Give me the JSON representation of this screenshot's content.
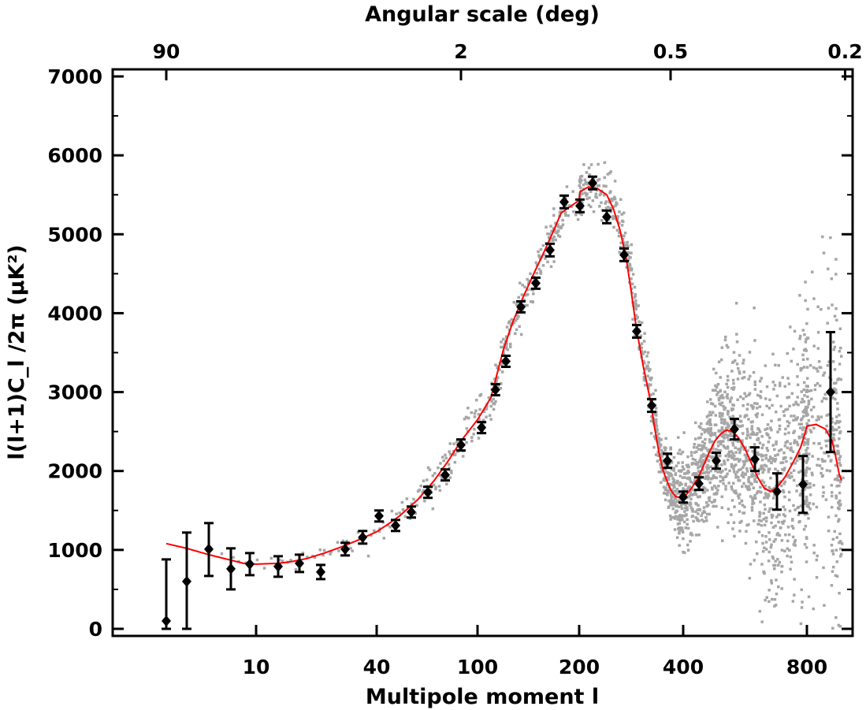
{
  "chart_data": {
    "type": "scatter",
    "title": "",
    "xlabel": "Multipole moment l",
    "ylabel": "l(l+1)C_l /2π (μK²)",
    "top_axis_label": "Angular scale (deg)",
    "x_scale": "nonlinear (log-like at low l, linear at high l)",
    "x_ticks": [
      {
        "l": 10,
        "label": "10"
      },
      {
        "l": 40,
        "label": "40"
      },
      {
        "l": 100,
        "label": "100"
      },
      {
        "l": 200,
        "label": "200"
      },
      {
        "l": 400,
        "label": "400"
      },
      {
        "l": 800,
        "label": "800"
      }
    ],
    "top_ticks": [
      {
        "l": 2,
        "label": "90"
      },
      {
        "l": 90,
        "label": "2"
      },
      {
        "l": 360,
        "label": "0.5"
      },
      {
        "l": 900,
        "label": "0.2"
      }
    ],
    "y_ticks": [
      0,
      1000,
      2000,
      3000,
      4000,
      5000,
      6000,
      7000
    ],
    "ylim": [
      0,
      7000
    ],
    "grid": false,
    "colors": {
      "binned": "#000000",
      "raw": "#a6a6a6",
      "model": "#ff0000"
    },
    "series": [
      {
        "kind": "binned-with-error-bars",
        "points": [
          {
            "l": 2,
            "y": 100,
            "err_lo": 100,
            "err_hi": 780
          },
          {
            "l": 3,
            "y": 600,
            "err_lo": 600,
            "err_hi": 620
          },
          {
            "l": 4,
            "y": 1010,
            "err_lo": 340,
            "err_hi": 330
          },
          {
            "l": 6,
            "y": 760,
            "err_lo": 260,
            "err_hi": 260
          },
          {
            "l": 9,
            "y": 820,
            "err_lo": 140,
            "err_hi": 140
          },
          {
            "l": 13,
            "y": 790,
            "err_lo": 130,
            "err_hi": 130
          },
          {
            "l": 18,
            "y": 830,
            "err_lo": 110,
            "err_hi": 110
          },
          {
            "l": 24,
            "y": 720,
            "err_lo": 90,
            "err_hi": 90
          },
          {
            "l": 31,
            "y": 1010,
            "err_lo": 80,
            "err_hi": 80
          },
          {
            "l": 36,
            "y": 1160,
            "err_lo": 80,
            "err_hi": 80
          },
          {
            "l": 41,
            "y": 1430,
            "err_lo": 70,
            "err_hi": 70
          },
          {
            "l": 48,
            "y": 1310,
            "err_lo": 70,
            "err_hi": 70
          },
          {
            "l": 56,
            "y": 1480,
            "err_lo": 70,
            "err_hi": 70
          },
          {
            "l": 66,
            "y": 1730,
            "err_lo": 70,
            "err_hi": 70
          },
          {
            "l": 78,
            "y": 1950,
            "err_lo": 70,
            "err_hi": 70
          },
          {
            "l": 90,
            "y": 2330,
            "err_lo": 70,
            "err_hi": 70
          },
          {
            "l": 103,
            "y": 2550,
            "err_lo": 70,
            "err_hi": 70
          },
          {
            "l": 117,
            "y": 3030,
            "err_lo": 70,
            "err_hi": 70
          },
          {
            "l": 133,
            "y": 3390,
            "err_lo": 70,
            "err_hi": 70
          },
          {
            "l": 148,
            "y": 4080,
            "err_lo": 70,
            "err_hi": 70
          },
          {
            "l": 162,
            "y": 4380,
            "err_lo": 70,
            "err_hi": 70
          },
          {
            "l": 175,
            "y": 4800,
            "err_lo": 80,
            "err_hi": 80
          },
          {
            "l": 194,
            "y": 5410,
            "err_lo": 80,
            "err_hi": 80
          },
          {
            "l": 210,
            "y": 5360,
            "err_lo": 80,
            "err_hi": 80
          },
          {
            "l": 225,
            "y": 5650,
            "err_lo": 80,
            "err_hi": 80
          },
          {
            "l": 240,
            "y": 5220,
            "err_lo": 80,
            "err_hi": 80
          },
          {
            "l": 266,
            "y": 4740,
            "err_lo": 80,
            "err_hi": 80
          },
          {
            "l": 291,
            "y": 3770,
            "err_lo": 80,
            "err_hi": 80
          },
          {
            "l": 312,
            "y": 2830,
            "err_lo": 80,
            "err_hi": 80
          },
          {
            "l": 350,
            "y": 2130,
            "err_lo": 90,
            "err_hi": 90
          },
          {
            "l": 400,
            "y": 1670,
            "err_lo": 70,
            "err_hi": 70
          },
          {
            "l": 445,
            "y": 1840,
            "err_lo": 80,
            "err_hi": 80
          },
          {
            "l": 505,
            "y": 2130,
            "err_lo": 100,
            "err_hi": 100
          },
          {
            "l": 567,
            "y": 2530,
            "err_lo": 130,
            "err_hi": 130
          },
          {
            "l": 630,
            "y": 2150,
            "err_lo": 150,
            "err_hi": 150
          },
          {
            "l": 700,
            "y": 1740,
            "err_lo": 230,
            "err_hi": 230
          },
          {
            "l": 766,
            "y": 1830,
            "err_lo": 360,
            "err_hi": 360
          },
          {
            "l": 838,
            "y": 3000,
            "err_lo": 760,
            "err_hi": 760
          }
        ]
      },
      {
        "kind": "model-curve",
        "points": [
          [
            2,
            1080
          ],
          [
            3,
            1020
          ],
          [
            4,
            940
          ],
          [
            6,
            870
          ],
          [
            8,
            830
          ],
          [
            10,
            820
          ],
          [
            13,
            830
          ],
          [
            16,
            850
          ],
          [
            20,
            890
          ],
          [
            25,
            960
          ],
          [
            30,
            1040
          ],
          [
            35,
            1130
          ],
          [
            40,
            1230
          ],
          [
            45,
            1330
          ],
          [
            50,
            1430
          ],
          [
            60,
            1640
          ],
          [
            70,
            1870
          ],
          [
            80,
            2120
          ],
          [
            90,
            2380
          ],
          [
            100,
            2650
          ],
          [
            110,
            2930
          ],
          [
            120,
            3250
          ],
          [
            130,
            3560
          ],
          [
            140,
            3890
          ],
          [
            150,
            4200
          ],
          [
            160,
            4500
          ],
          [
            170,
            4790
          ],
          [
            180,
            5050
          ],
          [
            190,
            5270
          ],
          [
            200,
            5430
          ],
          [
            210,
            5540
          ],
          [
            220,
            5600
          ],
          [
            230,
            5580
          ],
          [
            240,
            5500
          ],
          [
            250,
            5320
          ],
          [
            260,
            5050
          ],
          [
            270,
            4700
          ],
          [
            280,
            4280
          ],
          [
            290,
            3820
          ],
          [
            300,
            3340
          ],
          [
            310,
            2900
          ],
          [
            320,
            2520
          ],
          [
            330,
            2220
          ],
          [
            340,
            2000
          ],
          [
            350,
            1860
          ],
          [
            360,
            1760
          ],
          [
            375,
            1680
          ],
          [
            390,
            1660
          ],
          [
            405,
            1680
          ],
          [
            420,
            1760
          ],
          [
            440,
            1890
          ],
          [
            460,
            2060
          ],
          [
            480,
            2230
          ],
          [
            500,
            2380
          ],
          [
            520,
            2470
          ],
          [
            540,
            2520
          ],
          [
            560,
            2500
          ],
          [
            580,
            2420
          ],
          [
            600,
            2280
          ],
          [
            620,
            2090
          ],
          [
            640,
            1910
          ],
          [
            660,
            1780
          ],
          [
            680,
            1740
          ],
          [
            700,
            1790
          ],
          [
            720,
            1920
          ],
          [
            740,
            2100
          ],
          [
            760,
            2300
          ],
          [
            780,
            2460
          ],
          [
            800,
            2570
          ],
          [
            815,
            2590
          ],
          [
            830,
            2530
          ],
          [
            845,
            2380
          ],
          [
            860,
            2180
          ],
          [
            875,
            1960
          ],
          [
            885,
            1880
          ]
        ]
      }
    ]
  }
}
